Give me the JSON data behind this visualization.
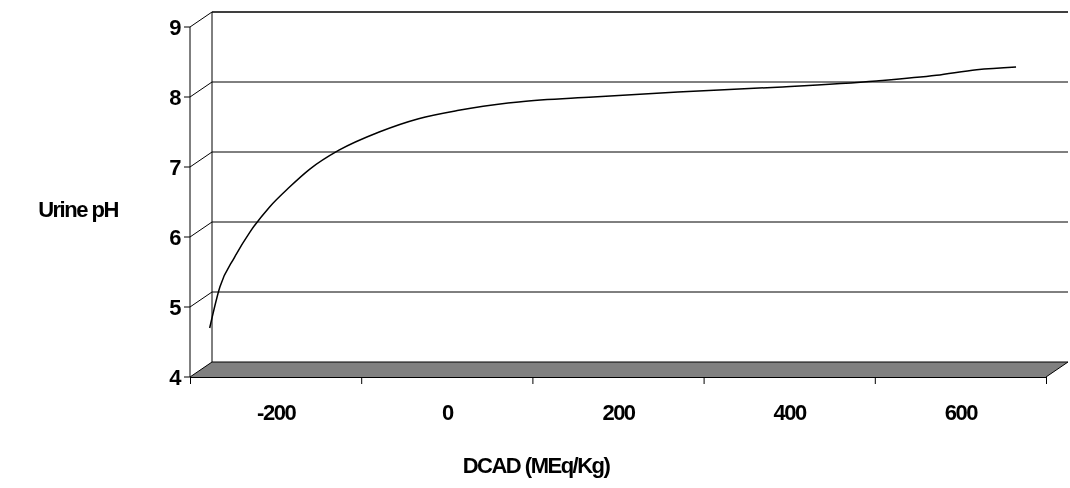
{
  "chart_data": {
    "type": "line",
    "xlabel": "DCAD (MEq/Kg)",
    "ylabel": "Urine pH",
    "x": [
      -277,
      -265,
      -248,
      -230,
      -207,
      -184,
      -160,
      -126,
      -79,
      -33,
      14,
      84,
      171,
      270,
      386,
      502,
      572,
      619,
      665
    ],
    "series": [
      {
        "color": "#000000",
        "values": [
          4.7,
          5.29,
          5.71,
          6.07,
          6.43,
          6.71,
          6.97,
          7.24,
          7.5,
          7.69,
          7.81,
          7.93,
          8.0,
          8.07,
          8.14,
          8.23,
          8.31,
          8.39,
          8.43
        ]
      }
    ],
    "xlim": [
      -300,
      700
    ],
    "xticks": [
      {
        "value": -300,
        "label": null
      },
      {
        "value": -200,
        "label": "-200"
      },
      {
        "value": -100,
        "label": null
      },
      {
        "value": 0,
        "label": "0"
      },
      {
        "value": 100,
        "label": null
      },
      {
        "value": 200,
        "label": "200"
      },
      {
        "value": 300,
        "label": null
      },
      {
        "value": 400,
        "label": "400"
      },
      {
        "value": 500,
        "label": null
      },
      {
        "value": 600,
        "label": "600"
      },
      {
        "value": 700,
        "label": null
      }
    ],
    "ylim": [
      4,
      9
    ],
    "yticks": [
      4,
      5,
      6,
      7,
      8,
      9
    ],
    "grid": "y",
    "marker": "none",
    "line_style": "solid"
  }
}
